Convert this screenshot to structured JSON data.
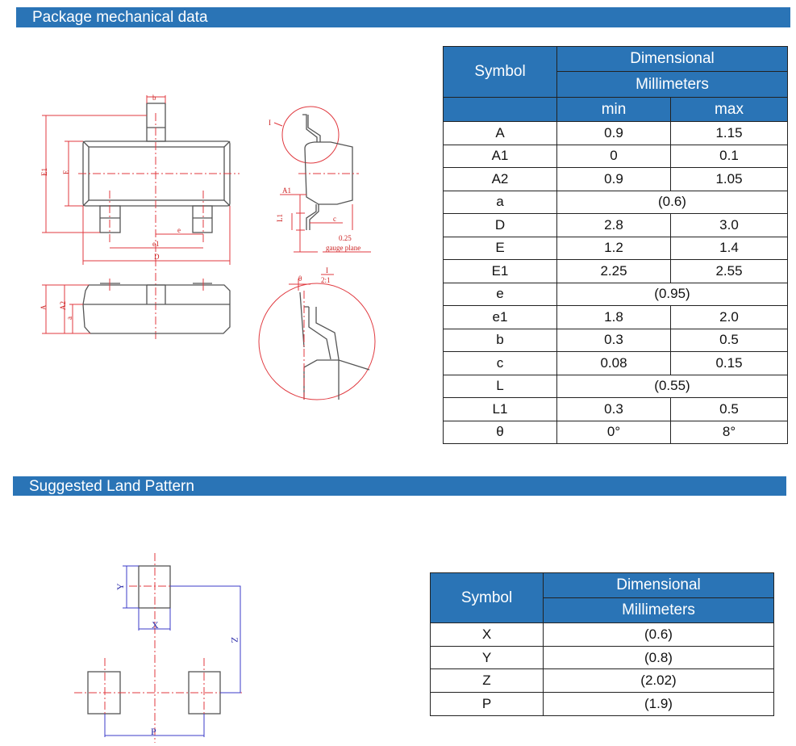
{
  "section1": {
    "title": "Package mechanical data"
  },
  "section2": {
    "title": "Suggested Land Pattern"
  },
  "table1": {
    "symbol_header": "Symbol",
    "dim_header": "Dimensional",
    "unit_header": "Millimeters",
    "min_header": "min",
    "max_header": "max",
    "rows": [
      {
        "symbol": "A",
        "min": "0.9",
        "max": "1.15"
      },
      {
        "symbol": "A1",
        "min": "0",
        "max": "0.1"
      },
      {
        "symbol": "A2",
        "min": "0.9",
        "max": "1.05"
      },
      {
        "symbol": "a",
        "value": "(0.6)"
      },
      {
        "symbol": "D",
        "min": "2.8",
        "max": "3.0"
      },
      {
        "symbol": "E",
        "min": "1.2",
        "max": "1.4"
      },
      {
        "symbol": "E1",
        "min": "2.25",
        "max": "2.55"
      },
      {
        "symbol": "e",
        "value": "(0.95)"
      },
      {
        "symbol": "e1",
        "min": "1.8",
        "max": "2.0"
      },
      {
        "symbol": "b",
        "min": "0.3",
        "max": "0.5"
      },
      {
        "symbol": "c",
        "min": "0.08",
        "max": "0.15"
      },
      {
        "symbol": "L",
        "value": "(0.55)"
      },
      {
        "symbol": "L1",
        "min": "0.3",
        "max": "0.5"
      },
      {
        "symbol": "θ",
        "min": "0°",
        "max": "8°"
      }
    ]
  },
  "table2": {
    "symbol_header": "Symbol",
    "dim_header": "Dimensional",
    "unit_header": "Millimeters",
    "rows": [
      {
        "symbol": "X",
        "value": "(0.6)"
      },
      {
        "symbol": "Y",
        "value": "(0.8)"
      },
      {
        "symbol": "Z",
        "value": "(2.02)"
      },
      {
        "symbol": "P",
        "value": "(1.9)"
      }
    ]
  },
  "drawing": {
    "labels": {
      "b": "b",
      "E1": "E1",
      "E": "E",
      "e": "e",
      "e1": "e1",
      "D": "D",
      "A": "A",
      "A2": "A2",
      "a": "a",
      "I": "I",
      "A1": "A1",
      "L1": "L1",
      "c": "c",
      "gauge_value": "0.25",
      "gauge": "gauge plane",
      "theta": "θ",
      "detail": "I",
      "scale": "2:1"
    }
  },
  "land": {
    "labels": {
      "X": "X",
      "Y": "Y",
      "Z": "Z",
      "P": "P"
    }
  },
  "colors": {
    "header": "#2a74b6",
    "dimension_red": "#e0393f",
    "dimension_blue": "#3b3bc8"
  }
}
